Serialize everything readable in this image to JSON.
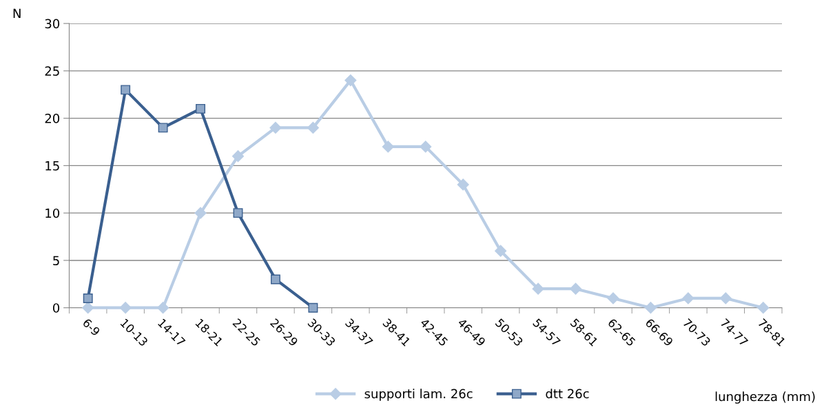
{
  "chart_data": {
    "type": "line",
    "ylabel": "N",
    "xlabel": "lunghezza (mm)",
    "categories": [
      "6-9",
      "10-13",
      "14-17",
      "18-21",
      "22-25",
      "26-29",
      "30-33",
      "34-37",
      "38-41",
      "42-45",
      "46-49",
      "50-53",
      "54-57",
      "58-61",
      "62-65",
      "66-69",
      "70-73",
      "74-77",
      "78-81"
    ],
    "series": [
      {
        "name": "supporti lam. 26c",
        "color": "#b9cde5",
        "marker": "diamond",
        "values": [
          0,
          0,
          0,
          10,
          16,
          19,
          19,
          24,
          17,
          17,
          13,
          6,
          2,
          2,
          1,
          0,
          1,
          1,
          0
        ]
      },
      {
        "name": "dtt 26c",
        "color": "#3a5f8f",
        "marker": "square",
        "values": [
          1,
          23,
          19,
          21,
          10,
          3,
          0,
          null,
          null,
          null,
          null,
          null,
          null,
          null,
          null,
          null,
          null,
          null,
          null
        ]
      }
    ],
    "ylim": [
      0,
      30
    ],
    "yticks": [
      0,
      5,
      10,
      15,
      20,
      25,
      30
    ],
    "grid": "y",
    "legend": "bottom"
  }
}
